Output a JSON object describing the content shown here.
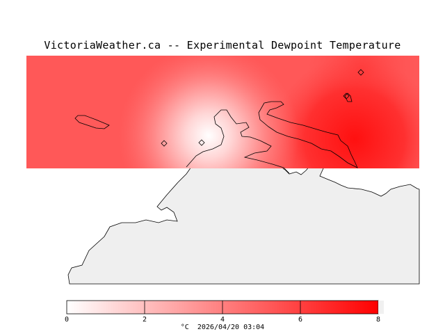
{
  "title": "VictoriaWeather.ca -- Experimental Dewpoint Temperature",
  "colors": {
    "scale_low": "#ffffff",
    "scale_high": "#ff0000",
    "land": "#efefef",
    "coastline": "#000000"
  },
  "stations": [
    {
      "id": "station-1"
    },
    {
      "id": "station-2"
    },
    {
      "id": "station-3"
    },
    {
      "id": "station-4"
    }
  ],
  "colorbar": {
    "unit": "°C",
    "min": 0,
    "max": 8,
    "ticks": [
      "0",
      "2",
      "4",
      "6",
      "8"
    ]
  },
  "timestamp": "2026/04/20 03:04"
}
